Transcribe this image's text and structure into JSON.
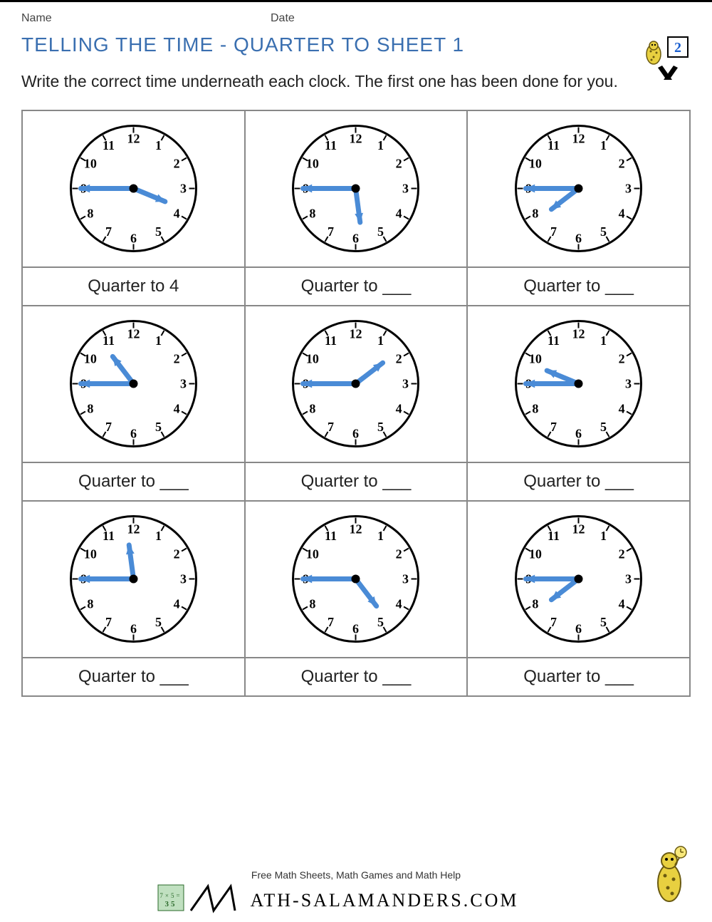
{
  "header": {
    "name_label": "Name",
    "date_label": "Date",
    "grade_badge": "2"
  },
  "title": "TELLING THE TIME - QUARTER TO SHEET 1",
  "instructions": "Write the correct time underneath each clock. The first one has been done for you.",
  "clock_style": {
    "face_stroke": "#000000",
    "face_fill": "#ffffff",
    "number_color": "#000000",
    "hand_color": "#4a8bd6",
    "hand_stroke_width": 7,
    "center_dot_color": "#000000",
    "number_fontsize": 18,
    "tick_stroke": "#000000"
  },
  "clocks": [
    {
      "hour_hand_points_to": 3.75,
      "minute_hand_points_to": 9,
      "answer": "Quarter to 4"
    },
    {
      "hour_hand_points_to": 5.75,
      "minute_hand_points_to": 9,
      "answer": "Quarter to ___"
    },
    {
      "hour_hand_points_to": 7.75,
      "minute_hand_points_to": 9,
      "answer": "Quarter to ___"
    },
    {
      "hour_hand_points_to": 10.75,
      "minute_hand_points_to": 9,
      "answer": "Quarter to ___"
    },
    {
      "hour_hand_points_to": 1.75,
      "minute_hand_points_to": 9,
      "answer": "Quarter to ___"
    },
    {
      "hour_hand_points_to": 9.75,
      "minute_hand_points_to": 9,
      "answer": "Quarter to ___"
    },
    {
      "hour_hand_points_to": 11.75,
      "minute_hand_points_to": 9,
      "answer": "Quarter to ___"
    },
    {
      "hour_hand_points_to": 4.75,
      "minute_hand_points_to": 9,
      "answer": "Quarter to ___"
    },
    {
      "hour_hand_points_to": 7.75,
      "minute_hand_points_to": 9,
      "answer": "Quarter to ___"
    }
  ],
  "footer": {
    "tagline": "Free Math Sheets, Math Games and Math Help",
    "site": "MATH-SALAMANDERS.COM"
  }
}
